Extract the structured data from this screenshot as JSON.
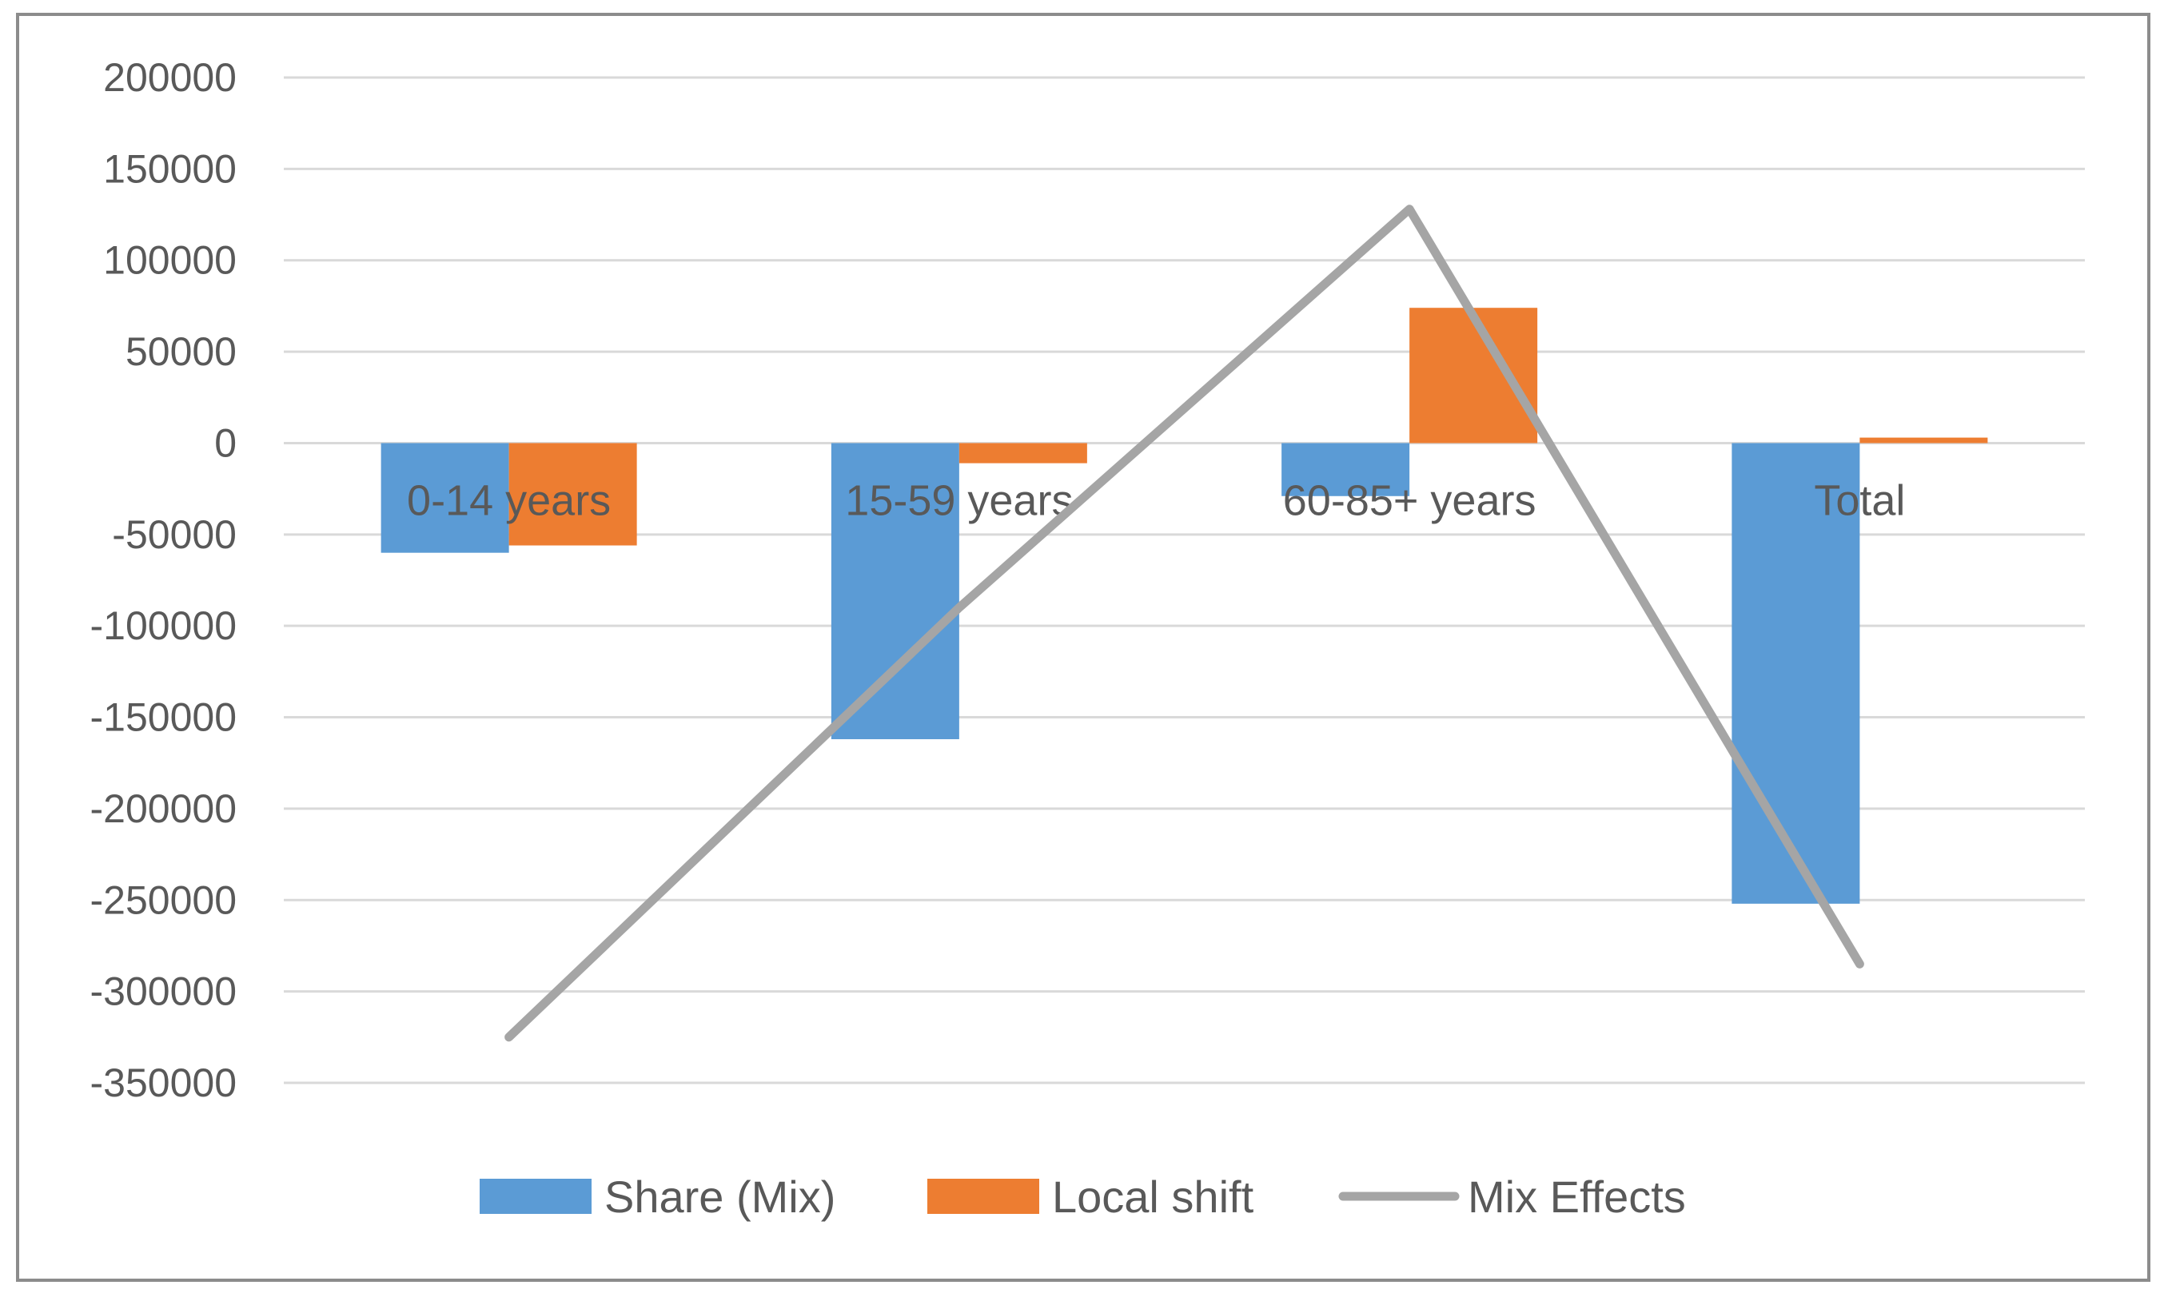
{
  "chart_data": {
    "type": "bar",
    "title": "",
    "xlabel": "",
    "ylabel": "",
    "categories": [
      "0-14 years",
      "15-59 years",
      "60-85+ years",
      "Total"
    ],
    "series": [
      {
        "name": "Share (Mix)",
        "kind": "bar",
        "color": "#5b9bd5",
        "values": [
          -60000,
          -162000,
          -29000,
          -252000
        ]
      },
      {
        "name": "Local shift",
        "kind": "bar",
        "color": "#ed7d31",
        "values": [
          -56000,
          -11000,
          74000,
          3000
        ]
      },
      {
        "name": "Mix Effects",
        "kind": "line",
        "color": "#a5a5a5",
        "values": [
          -325000,
          -90000,
          128000,
          -285000
        ]
      }
    ],
    "ylim": [
      -350000,
      200000
    ],
    "yticks": [
      200000,
      150000,
      100000,
      50000,
      0,
      -50000,
      -100000,
      -150000,
      -200000,
      -250000,
      -300000,
      -350000
    ],
    "grid": true,
    "legend": "bottom"
  }
}
